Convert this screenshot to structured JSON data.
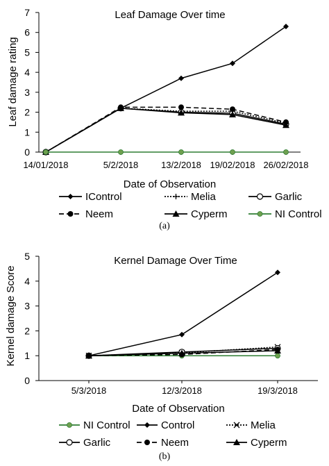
{
  "chart_data": [
    {
      "type": "line",
      "title": "Leaf Damage Over time",
      "xlabel": "Date of Observation",
      "ylabel": "Leaf damage rating",
      "ylim": [
        0,
        7
      ],
      "yticks": [
        "0",
        "1",
        "2",
        "3",
        "4",
        "5",
        "6",
        "7"
      ],
      "categories": [
        "14/01/2018",
        "5/2/2018",
        "13/2/2018",
        "19/02/2018",
        "26/02/2018"
      ],
      "legend_position": "bottom",
      "caption": "(a)",
      "series": [
        {
          "name": "IControl",
          "color": "#000000",
          "style": "solid",
          "marker": "diamond",
          "values": [
            0,
            2.2,
            3.7,
            4.45,
            6.3
          ]
        },
        {
          "name": "Melia",
          "color": "#000000",
          "style": "dotted-plus",
          "marker": "plus",
          "values": [
            0,
            2.2,
            2.05,
            2.05,
            1.45
          ]
        },
        {
          "name": "Garlic",
          "color": "#000000",
          "style": "solid",
          "marker": "open-circle",
          "values": [
            0,
            2.2,
            2.0,
            1.95,
            1.4
          ]
        },
        {
          "name": "Neem",
          "color": "#000000",
          "style": "dashed",
          "marker": "dot",
          "values": [
            0,
            2.25,
            2.25,
            2.15,
            1.5
          ]
        },
        {
          "name": "Cyperm",
          "color": "#000000",
          "style": "solid",
          "marker": "triangle",
          "values": [
            0,
            2.2,
            1.97,
            1.88,
            1.35
          ]
        },
        {
          "name": "NI Control",
          "color": "#2e7d32",
          "marker_fill": "#6fa050",
          "style": "solid",
          "marker": "green-circle",
          "values": [
            0,
            0,
            0,
            0,
            0
          ]
        }
      ]
    },
    {
      "type": "line",
      "title": "Kernel Damage Over Time",
      "xlabel": "Date of Observation",
      "ylabel": "Kernel damage Score",
      "ylim": [
        0,
        5
      ],
      "yticks": [
        "0",
        "1",
        "2",
        "3",
        "4",
        "5"
      ],
      "categories": [
        "5/3/2018",
        "12/3/2018",
        "19/3/2018"
      ],
      "legend_position": "bottom",
      "caption": "(b)",
      "series": [
        {
          "name": "NI Control",
          "color": "#2e7d32",
          "marker_fill": "#6fa050",
          "style": "solid",
          "marker": "green-circle",
          "values": [
            1,
            1,
            1
          ]
        },
        {
          "name": "Control",
          "color": "#000000",
          "style": "solid",
          "marker": "diamond",
          "values": [
            1,
            1.85,
            4.35
          ]
        },
        {
          "name": "Melia",
          "color": "#000000",
          "style": "dotted",
          "marker": "x",
          "values": [
            1,
            1.12,
            1.35
          ]
        },
        {
          "name": "Garlic",
          "color": "#000000",
          "style": "solid",
          "marker": "open-circle",
          "values": [
            1,
            1.15,
            1.3
          ]
        },
        {
          "name": "Neem",
          "color": "#000000",
          "style": "dashed",
          "marker": "dot",
          "values": [
            1,
            1.05,
            1.25
          ]
        },
        {
          "name": "Cyperm",
          "color": "#000000",
          "style": "solid",
          "marker": "triangle",
          "values": [
            1,
            1.1,
            1.2
          ]
        }
      ]
    }
  ]
}
